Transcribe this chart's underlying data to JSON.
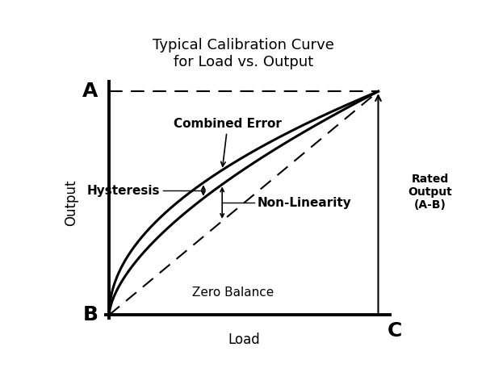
{
  "title_line1": "Typical Calibration Curve",
  "title_line2": "for Load vs. Output",
  "xlabel": "Load",
  "ylabel": "Output",
  "label_A": "A",
  "label_B": "B",
  "label_C": "C",
  "label_rated_output": "Rated\nOutput\n(A-B)",
  "label_zero_balance": "Zero Balance",
  "label_combined_error": "Combined Error",
  "label_hysteresis": "Hysteresis",
  "label_non_linearity": "Non-Linearity",
  "bg_color": "#ffffff",
  "line_color": "#000000",
  "title_fontsize": 13,
  "label_fontsize": 12,
  "annotation_fontsize": 11,
  "abc_fontsize": 18
}
